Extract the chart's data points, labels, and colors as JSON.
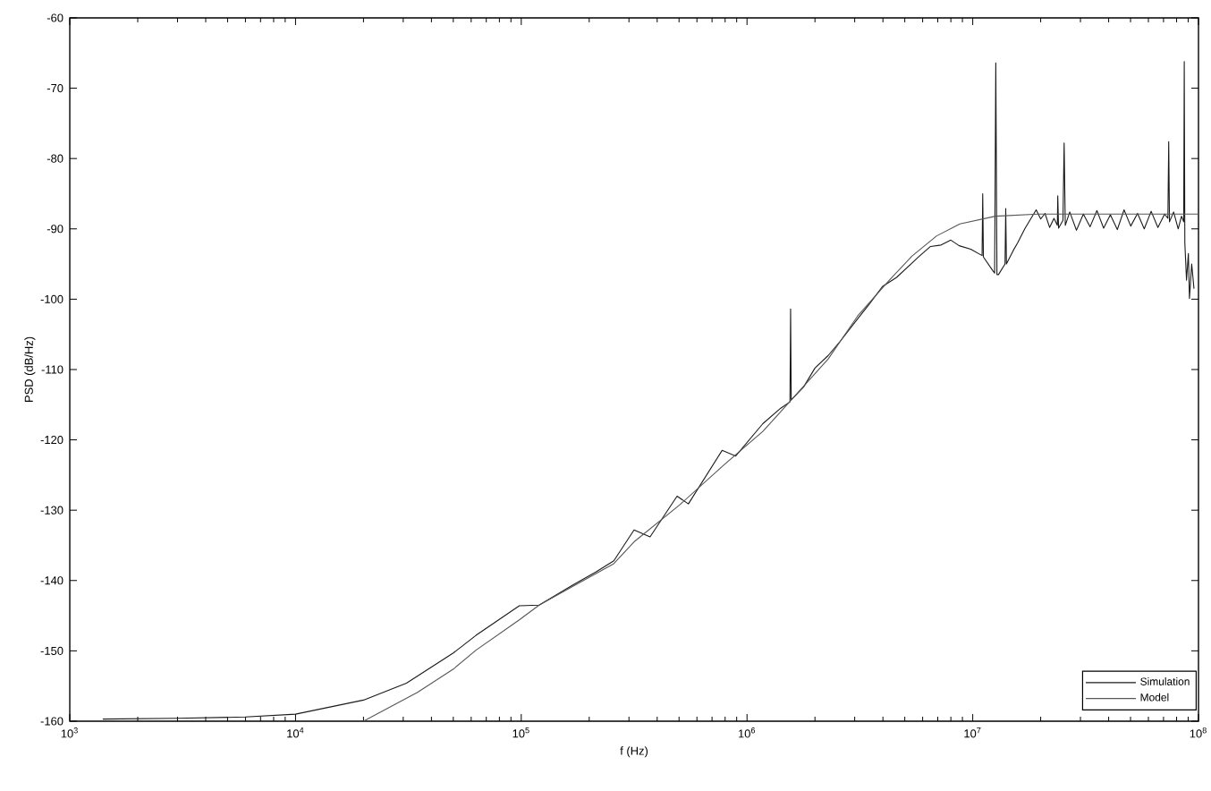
{
  "chart_data": {
    "type": "line",
    "xlabel": "f (Hz)",
    "ylabel": "PSD (dB/Hz)",
    "log": "x",
    "xlim": [
      1000,
      100000000
    ],
    "xticks": [
      {
        "value": 1000,
        "label": "10$^{3}$"
      },
      {
        "value": 10000,
        "label": "10$^{4}$"
      },
      {
        "value": 100000,
        "label": "10$^{5}$"
      },
      {
        "value": 1000000,
        "label": "10$^{6}$"
      },
      {
        "value": 10000000,
        "label": "10$^{7}$"
      },
      {
        "value": 100000000,
        "label": "10$^{8}$"
      }
    ],
    "ylim": [
      -160,
      -60
    ],
    "yticks": [
      -160,
      -150,
      -140,
      -130,
      -120,
      -110,
      -100,
      -90,
      -80,
      -70,
      -60
    ],
    "legend": "bottom right",
    "marker": "none",
    "line_style": "solid",
    "series": [
      {
        "name": "Simulation",
        "color": "#1a1a1a",
        "x": [
          1400,
          3000,
          6000,
          10000,
          20000,
          31000,
          50000,
          63000,
          98000,
          120000,
          170000,
          214000,
          257000,
          316000,
          372000,
          490000,
          550000,
          776000,
          891000,
          1175000,
          1410000,
          1550000,
          1560000,
          1570000,
          1780000,
          2000000,
          2290000,
          2600000,
          3090000,
          3500000,
          3980000,
          4600000,
          5750000,
          6500000,
          7240000,
          8000000,
          8710000,
          9800000,
          11000000,
          11070000,
          11150000,
          12300000,
          12500000,
          12650000,
          12800000,
          13000000,
          13900000,
          14000000,
          14100000,
          15100000,
          15800000,
          17000000,
          18200000,
          19100000,
          20000000,
          20900000,
          21900000,
          22900000,
          23700000,
          23800000,
          24000000,
          25100000,
          25400000,
          25700000,
          26900000,
          28800000,
          30900000,
          33100000,
          35500000,
          38000000,
          40700000,
          43700000,
          46800000,
          50100000,
          53700000,
          57500000,
          61700000,
          66100000,
          70800000,
          73200000,
          73800000,
          74400000,
          77600000,
          81300000,
          84100000,
          86000000,
          86500000,
          87000000,
          88500000,
          90200000,
          91200000,
          93300000,
          95500000
        ],
        "values": [
          -159.7,
          -159.6,
          -159.4,
          -159.0,
          -157.0,
          -154.6,
          -150.3,
          -147.8,
          -143.6,
          -143.5,
          -140.6,
          -138.8,
          -137.2,
          -132.8,
          -133.8,
          -128.0,
          -129.1,
          -121.5,
          -122.3,
          -117.7,
          -115.5,
          -114.6,
          -101.4,
          -114.3,
          -112.5,
          -109.8,
          -108.0,
          -105.9,
          -102.8,
          -100.6,
          -98.2,
          -96.9,
          -94.0,
          -92.5,
          -92.3,
          -91.6,
          -92.4,
          -92.9,
          -93.8,
          -85.0,
          -94.0,
          -96.0,
          -96.3,
          -66.4,
          -96.5,
          -96.5,
          -95.0,
          -87.1,
          -95.0,
          -93.1,
          -92.0,
          -90.0,
          -88.4,
          -87.3,
          -88.6,
          -87.8,
          -89.8,
          -88.5,
          -89.5,
          -85.3,
          -89.9,
          -88.8,
          -77.8,
          -89.5,
          -87.6,
          -90.2,
          -87.9,
          -89.7,
          -87.4,
          -89.9,
          -88.0,
          -90.1,
          -87.3,
          -89.6,
          -87.8,
          -90.0,
          -87.5,
          -89.8,
          -87.9,
          -88.5,
          -77.6,
          -89.0,
          -87.6,
          -90.0,
          -88.2,
          -89.0,
          -66.2,
          -92.0,
          -97.3,
          -93.5,
          -99.9,
          -95.0,
          -98.5
        ]
      },
      {
        "name": "Model",
        "color": "#555555",
        "x": [
          20000,
          34700,
          50000,
          63000,
          98000,
          120000,
          170000,
          257000,
          316000,
          501000,
          794000,
          1175000,
          1410000,
          2290000,
          3090000,
          4270000,
          5370000,
          6920000,
          8770000,
          12600000,
          19500000,
          100000000
        ],
        "values": [
          -160,
          -155.9,
          -152.6,
          -149.9,
          -145.6,
          -143.5,
          -140.8,
          -137.6,
          -134.5,
          -129.3,
          -123.5,
          -118.8,
          -116.0,
          -108.5,
          -102.4,
          -97.3,
          -93.9,
          -91.0,
          -89.3,
          -88.2,
          -87.9,
          -87.9
        ]
      }
    ]
  }
}
